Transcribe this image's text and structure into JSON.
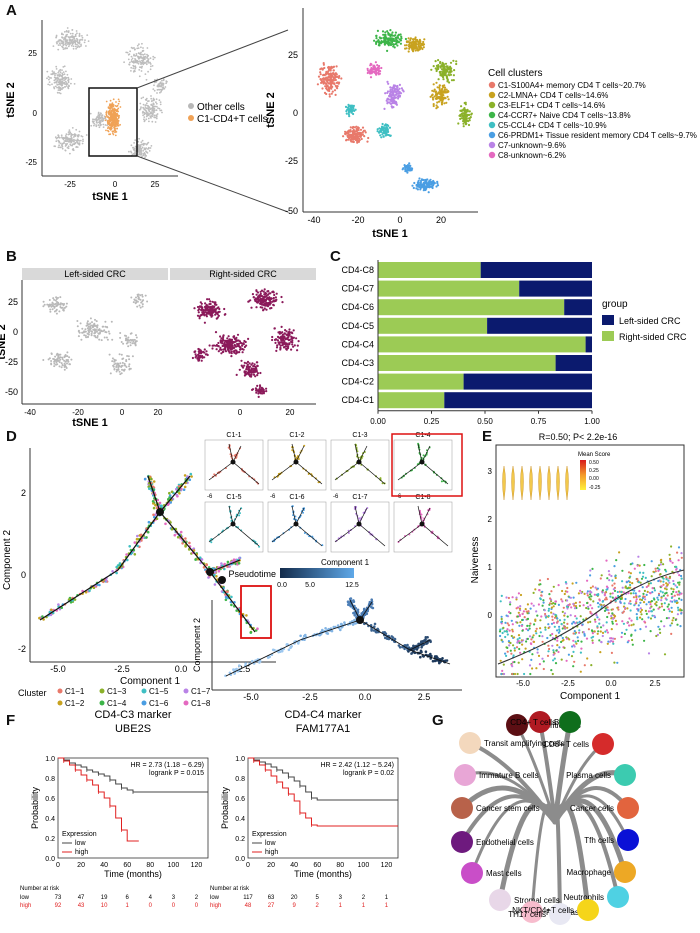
{
  "panels": {
    "A": "A",
    "B": "B",
    "C": "C",
    "D": "D",
    "E": "E",
    "F": "F",
    "G": "G"
  },
  "panelA": {
    "xlabel": "tSNE 1",
    "ylabel": "tSNE 2",
    "left_xticks": [
      "-25",
      "0",
      "25"
    ],
    "left_yticks": [
      "25",
      "0",
      "-25"
    ],
    "legend": [
      "Other cells",
      "C1-CD4+T cells"
    ],
    "right_xticks": [
      "-40",
      "-20",
      "0",
      "20"
    ],
    "right_yticks": [
      "25",
      "0",
      "-25",
      "-50"
    ],
    "legend_title": "Cell clusters",
    "clusters": [
      {
        "label": "C1-S100A4+ memory CD4 T cells~20.7%",
        "color": "#e8796b"
      },
      {
        "label": "C2-LMNA+ CD4 T cells~14.6%",
        "color": "#c8a21f"
      },
      {
        "label": "C3-ELF1+ CD4 T cells~14.6%",
        "color": "#8bb12a"
      },
      {
        "label": "C4-CCR7+ Naive CD4 T cells~13.8%",
        "color": "#3db549"
      },
      {
        "label": "C5-CCL4+ CD4 T cells~10.9%",
        "color": "#3fbfc3"
      },
      {
        "label": "C6-PRDM1+ Tissue resident memory CD4 T cells~9.7%",
        "color": "#4a9ee3"
      },
      {
        "label": "C7-unknown~9.6%",
        "color": "#b983e6"
      },
      {
        "label": "C8-unknown~6.2%",
        "color": "#e469c0"
      }
    ]
  },
  "panelB": {
    "strips": [
      "Left-sided CRC",
      "Right-sided CRC"
    ],
    "xlabel": "tSNE 1",
    "ylabel": "tSNE 2",
    "xticks": [
      "-40",
      "-20",
      "0",
      "20",
      "0",
      "20"
    ],
    "yticks": [
      "25",
      "0",
      "-25",
      "-50"
    ],
    "colors": {
      "left": "#b8b8b8",
      "right": "#8b1a5a"
    }
  },
  "chart_data": [
    {
      "type": "bar",
      "title": "",
      "categories": [
        "CD4-C8",
        "CD4-C7",
        "CD4-C6",
        "CD4-C5",
        "CD4-C4",
        "CD4-C3",
        "CD4-C2",
        "CD4-C1"
      ],
      "series": [
        {
          "name": "Right-sided CRC",
          "color": "#9ccb55",
          "values": [
            0.48,
            0.66,
            0.87,
            0.51,
            0.97,
            0.83,
            0.4,
            0.31
          ]
        },
        {
          "name": "Left-sided CRC",
          "color": "#0b1a6e",
          "values": [
            0.52,
            0.34,
            0.13,
            0.49,
            0.03,
            0.17,
            0.6,
            0.69
          ]
        }
      ],
      "xticks": [
        "0.00",
        "0.25",
        "0.50",
        "0.75",
        "1.00"
      ],
      "xlim": [
        0,
        1
      ],
      "legend_title": "group",
      "legend": [
        "Left-sided CRC",
        "Right-sided CRC"
      ],
      "stacked": true,
      "orientation": "horizontal"
    },
    {
      "type": "line",
      "title": "CD4-C3 marker",
      "subtitle": "UBE2S",
      "annotation": [
        "HR = 2.73 (1.18 − 6.29)",
        "logrank P = 0.015"
      ],
      "xlabel": "Time (months)",
      "ylabel": "Probability",
      "xticks": [
        "0",
        "20",
        "40",
        "60",
        "80",
        "100",
        "120"
      ],
      "yticks": [
        "0.0",
        "0.2",
        "0.4",
        "0.6",
        "0.8",
        "1.0"
      ],
      "xlim": [
        0,
        130
      ],
      "ylim": [
        0,
        1
      ],
      "legend_title": "Expression",
      "legend": [
        "low",
        "high"
      ],
      "series": [
        {
          "name": "low",
          "color": "#444444",
          "x": [
            0,
            5,
            10,
            15,
            20,
            25,
            30,
            35,
            40,
            45,
            50,
            55,
            60,
            65,
            130
          ],
          "y": [
            1.0,
            0.98,
            0.95,
            0.93,
            0.91,
            0.88,
            0.86,
            0.84,
            0.82,
            0.78,
            0.74,
            0.7,
            0.68,
            0.66,
            0.66
          ]
        },
        {
          "name": "high",
          "color": "#e02020",
          "x": [
            0,
            5,
            10,
            15,
            20,
            25,
            30,
            35,
            40,
            45,
            50,
            55,
            60,
            70
          ],
          "y": [
            1.0,
            0.97,
            0.93,
            0.88,
            0.83,
            0.78,
            0.73,
            0.66,
            0.6,
            0.52,
            0.4,
            0.28,
            0.17,
            0.17
          ]
        }
      ],
      "risk_title": "Number at risk",
      "risk_rows": [
        {
          "label": "low",
          "values": [
            "73",
            "47",
            "19",
            "6",
            "4",
            "3",
            "2"
          ]
        },
        {
          "label": "high",
          "values": [
            "92",
            "43",
            "10",
            "1",
            "0",
            "0",
            "0"
          ]
        }
      ]
    },
    {
      "type": "line",
      "title": "CD4-C4 marker",
      "subtitle": "FAM177A1",
      "annotation": [
        "HR = 2.42 (1.12 − 5.24)",
        "logrank P = 0.02"
      ],
      "xlabel": "Time (months)",
      "ylabel": "Probability",
      "xticks": [
        "0",
        "20",
        "40",
        "60",
        "80",
        "100",
        "120"
      ],
      "yticks": [
        "0.0",
        "0.2",
        "0.4",
        "0.6",
        "0.8",
        "1.0"
      ],
      "xlim": [
        0,
        130
      ],
      "ylim": [
        0,
        1
      ],
      "legend_title": "Expression",
      "legend": [
        "low",
        "high"
      ],
      "series": [
        {
          "name": "low",
          "color": "#444444",
          "x": [
            0,
            5,
            10,
            15,
            20,
            25,
            30,
            35,
            40,
            45,
            50,
            55,
            60,
            130
          ],
          "y": [
            1.0,
            0.98,
            0.96,
            0.94,
            0.91,
            0.88,
            0.85,
            0.81,
            0.77,
            0.72,
            0.66,
            0.6,
            0.58,
            0.58
          ]
        },
        {
          "name": "high",
          "color": "#e02020",
          "x": [
            0,
            5,
            10,
            15,
            20,
            25,
            30,
            35,
            40,
            45,
            50,
            55,
            60,
            130
          ],
          "y": [
            1.0,
            0.97,
            0.93,
            0.88,
            0.82,
            0.76,
            0.7,
            0.64,
            0.57,
            0.45,
            0.4,
            0.33,
            0.32,
            0.32
          ]
        }
      ],
      "risk_title": "Number at risk",
      "risk_rows": [
        {
          "label": "low",
          "values": [
            "117",
            "63",
            "20",
            "5",
            "3",
            "2",
            "1"
          ]
        },
        {
          "label": "high",
          "values": [
            "48",
            "27",
            "9",
            "2",
            "1",
            "1",
            "1"
          ]
        }
      ]
    }
  ],
  "panelD": {
    "xlabel": "Component 1",
    "ylabel": "Component 2",
    "main_xticks": [
      "-5.0",
      "-2.5",
      "0.0",
      "2.5"
    ],
    "main_yticks": [
      "2",
      "0",
      "-2"
    ],
    "cluster_legend_title": "Cluster",
    "cluster_legend": [
      "C1−1",
      "C1−2",
      "C1−3",
      "C1−4",
      "C1−5",
      "C1−6",
      "C1−7",
      "C1−8"
    ],
    "small": [
      "C1-1",
      "C1-2",
      "C1-3",
      "C1-4",
      "C1-5",
      "C1-6",
      "C1-7",
      "C1-8"
    ],
    "small_ticks": [
      "-6",
      "0",
      "4",
      "-5",
      "2.5"
    ],
    "pseudotime_label": "Pseudotime",
    "pseudotime_ticks": [
      "0.0",
      "2.5",
      "5.0",
      "7.5",
      "10.0",
      "12.5"
    ],
    "pt_xticks": [
      "-5.0",
      "-2.5",
      "0.0",
      "2.5"
    ]
  },
  "panelE": {
    "title": "R=0.50; P< 2.2e-16",
    "xlabel": "Component 1",
    "ylabel": "Naiveness",
    "xticks": [
      "-5.0",
      "-2.5",
      "0.0",
      "2.5"
    ],
    "yticks": [
      "3",
      "2",
      "1",
      "0"
    ],
    "legend_title": "Mean Score",
    "legend_ticks": [
      "0.50",
      "0.25",
      "0.00",
      "-0.25"
    ]
  },
  "panelG": {
    "nodes": [
      {
        "label": "Dendritic cells",
        "color": "#5c0f14"
      },
      {
        "label": "B cells",
        "color": "#b01a22"
      },
      {
        "label": "CD4+ T cells",
        "color": "#0f6e1c"
      },
      {
        "label": "CD8+ T cells",
        "color": "#d52b2b"
      },
      {
        "label": "Transit amplifying cells",
        "color": "#f3d8bd"
      },
      {
        "label": "Plasma cells",
        "color": "#3ccbb0"
      },
      {
        "label": "Immature B cells",
        "color": "#e8a6d6"
      },
      {
        "label": "Cancer cells",
        "color": "#e2643e"
      },
      {
        "label": "Cancer stem cells",
        "color": "#b8624a"
      },
      {
        "label": "Tfh cells",
        "color": "#0a11d6"
      },
      {
        "label": "Endothelial cells",
        "color": "#6e1a7e"
      },
      {
        "label": "Macrophage",
        "color": "#eda825"
      },
      {
        "label": "Mast cells",
        "color": "#c94ec8"
      },
      {
        "label": "Neutrophils",
        "color": "#4fd1e3"
      },
      {
        "label": "Stromal cells",
        "color": "#e8d7e8"
      },
      {
        "label": "Fibroblasts",
        "color": "#f7bccd"
      },
      {
        "label": "TH17 cells",
        "color": "#e8e8f3"
      },
      {
        "label": "NKT/CD4+T cells",
        "color": "#f5d51a"
      }
    ]
  }
}
